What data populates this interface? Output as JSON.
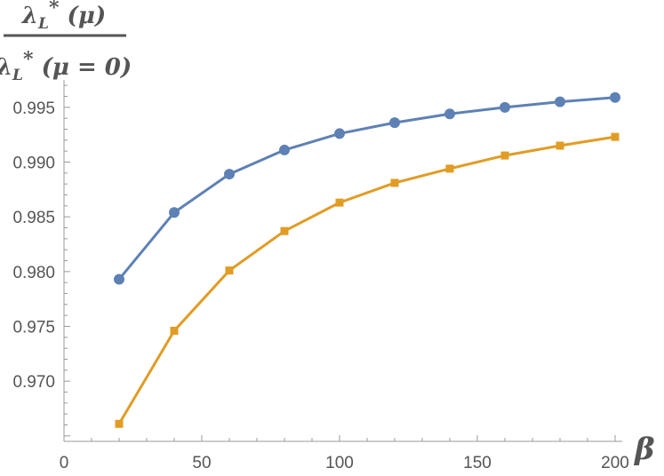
{
  "chart_data": {
    "type": "line",
    "title": "",
    "xlabel": "β",
    "ylabel": {
      "numerator": {
        "main": "λ",
        "sub": "L",
        "sup": "*",
        "arg": " (μ)"
      },
      "denominator": {
        "main": "λ",
        "sub": "L",
        "sup": "*",
        "arg": " (μ = 0)"
      }
    },
    "xlim": [
      0,
      200
    ],
    "ylim": [
      0.9645,
      0.9975
    ],
    "x_ticks": [
      0,
      50,
      100,
      150,
      200
    ],
    "x_tick_labels": [
      "0",
      "50",
      "100",
      "150",
      "200"
    ],
    "y_ticks": [
      0.97,
      0.975,
      0.98,
      0.985,
      0.99,
      0.995
    ],
    "y_tick_labels": [
      "0.970",
      "0.975",
      "0.980",
      "0.985",
      "0.990",
      "0.995"
    ],
    "grid": false,
    "x": [
      20,
      40,
      60,
      80,
      100,
      120,
      140,
      160,
      180,
      200
    ],
    "series": [
      {
        "marker": "circle",
        "color": "#5E81B5",
        "values": [
          0.9793,
          0.9854,
          0.9889,
          0.9911,
          0.9926,
          0.9936,
          0.9944,
          0.995,
          0.9955,
          0.9959
        ]
      },
      {
        "marker": "square",
        "color": "#E19C24",
        "values": [
          0.9661,
          0.9746,
          0.9801,
          0.9837,
          0.9863,
          0.9881,
          0.9894,
          0.9906,
          0.9915,
          0.9923
        ]
      }
    ],
    "axis_color": "#999999",
    "text_color": "#555555"
  }
}
